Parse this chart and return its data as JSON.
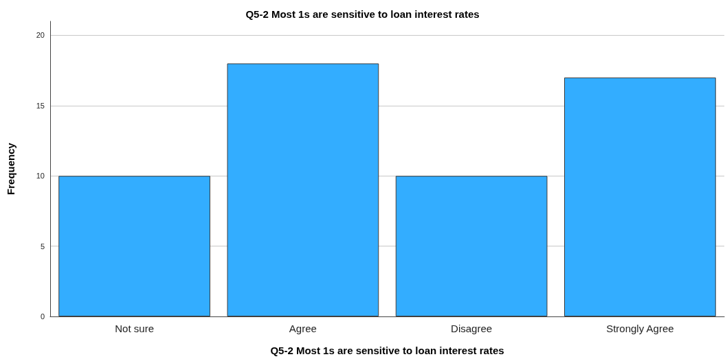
{
  "chart_data": {
    "type": "bar",
    "title": "Q5-2 Most 1s are sensitive to loan interest rates",
    "xlabel": "Q5-2 Most 1s are sensitive to loan interest rates",
    "ylabel": "Frequency",
    "categories": [
      "Not sure",
      "Agree",
      "Disagree",
      "Strongly Agree"
    ],
    "values": [
      10,
      18,
      10,
      17
    ],
    "color": "#33adff",
    "ylim": [
      0,
      21
    ],
    "yticks": [
      0,
      5,
      10,
      15,
      20
    ],
    "grid": "y"
  }
}
